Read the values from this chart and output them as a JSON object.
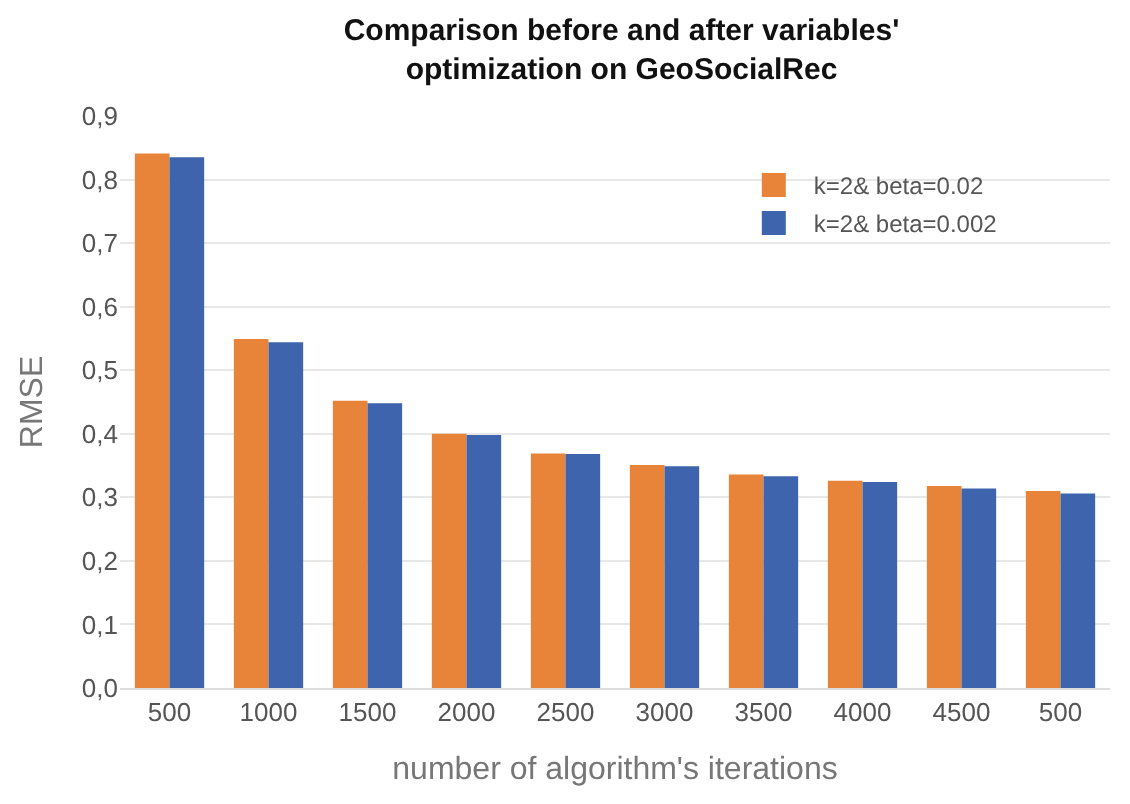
{
  "chart_data": {
    "type": "bar",
    "title": "Comparison before and after variables'\noptimization on GeoSocialRec",
    "xlabel": "number of algorithm's iterations",
    "ylabel": "RMSE",
    "categories": [
      "500",
      "1000",
      "1500",
      "2000",
      "2500",
      "3000",
      "3500",
      "4000",
      "4500",
      "500"
    ],
    "series": [
      {
        "name": "k=2& beta=0.02",
        "color": "#e8843a",
        "values": [
          0.841,
          0.549,
          0.452,
          0.4,
          0.369,
          0.351,
          0.336,
          0.326,
          0.318,
          0.31
        ]
      },
      {
        "name": "k=2& beta=0.002",
        "color": "#3e64ad",
        "values": [
          0.835,
          0.544,
          0.448,
          0.398,
          0.368,
          0.349,
          0.333,
          0.324,
          0.314,
          0.306
        ]
      }
    ],
    "ylim": [
      0,
      0.9
    ],
    "yticks": [
      {
        "value": 0,
        "label": "0,0"
      },
      {
        "value": 0.1,
        "label": "0,1"
      },
      {
        "value": 0.2,
        "label": "0,2"
      },
      {
        "value": 0.3,
        "label": "0,3"
      },
      {
        "value": 0.4,
        "label": "0,4"
      },
      {
        "value": 0.5,
        "label": "0,5"
      },
      {
        "value": 0.6,
        "label": "0,6"
      },
      {
        "value": 0.7,
        "label": "0,7"
      },
      {
        "value": 0.8,
        "label": "0,8"
      },
      {
        "value": 0.9,
        "label": "0,9"
      }
    ],
    "grid": "y",
    "legend": "top right"
  }
}
